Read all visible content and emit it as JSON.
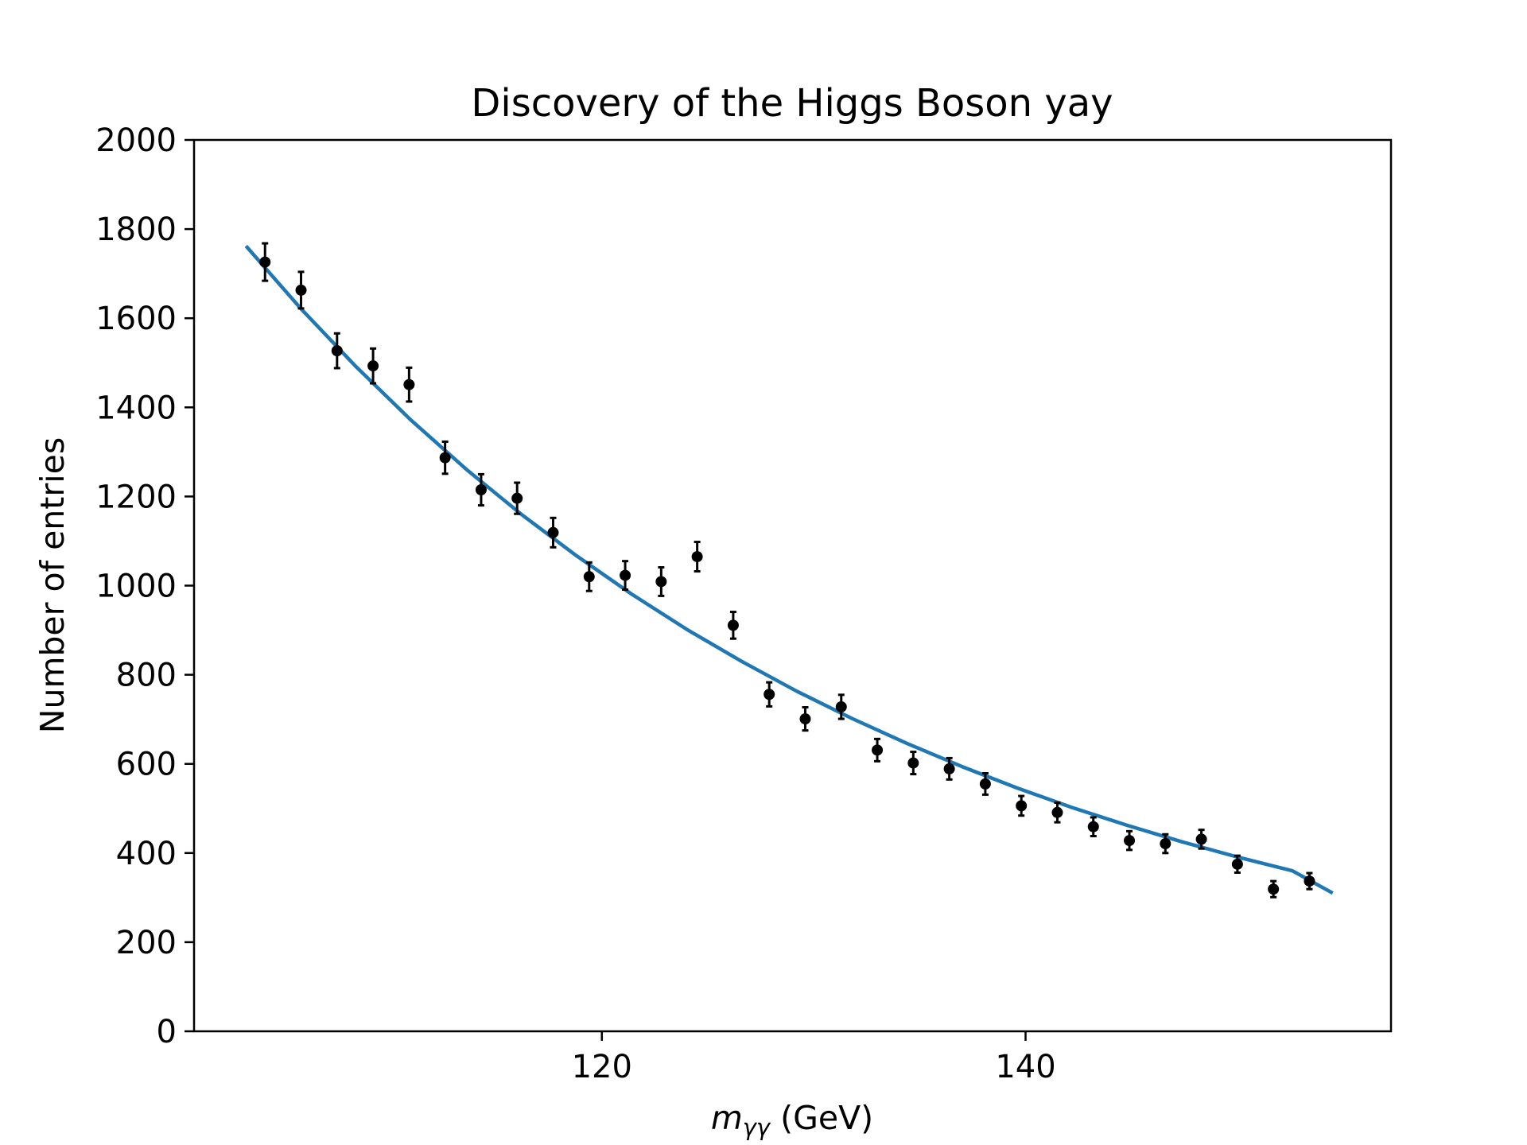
{
  "chart_data": {
    "type": "scatter",
    "title": "Discovery of the Higgs Boson yay",
    "xlabel": {
      "symbol": "m",
      "subscript": "γγ",
      "unit": " (GeV)"
    },
    "ylabel": "Number of entries",
    "xlim": [
      100.75,
      157.25
    ],
    "ylim": [
      0,
      2000
    ],
    "xticks": [
      120,
      140
    ],
    "yticks": [
      0,
      200,
      400,
      600,
      800,
      1000,
      1200,
      1400,
      1600,
      1800,
      2000
    ],
    "grid": false,
    "legend": "none",
    "series": [
      {
        "type": "errorbar",
        "color": "#000000",
        "x": [
          104.1,
          105.8,
          107.5,
          109.2,
          110.9,
          112.6,
          114.3,
          116.0,
          117.7,
          119.4,
          121.1,
          122.8,
          124.5,
          126.2,
          127.9,
          129.6,
          131.3,
          133.0,
          134.7,
          136.4,
          138.1,
          139.8,
          141.5,
          143.2,
          144.9,
          146.6,
          148.3,
          150.0,
          151.7,
          153.4
        ],
        "y": [
          1726,
          1663,
          1527,
          1493,
          1451,
          1287,
          1215,
          1196,
          1119,
          1020,
          1023,
          1009,
          1065,
          911,
          756,
          701,
          728,
          631,
          602,
          589,
          555,
          506,
          491,
          459,
          428,
          421,
          431,
          375,
          319,
          337
        ],
        "yerr": [
          42,
          41,
          39,
          39,
          38,
          36,
          35,
          35,
          33,
          32,
          32,
          32,
          33,
          30,
          27,
          26,
          27,
          25,
          25,
          24,
          24,
          22,
          22,
          21,
          21,
          21,
          21,
          19,
          18,
          18
        ]
      },
      {
        "type": "line",
        "color": "#1f77b4",
        "x": [
          103.2,
          105.8,
          108.4,
          111.0,
          113.6,
          116.2,
          118.8,
          121.4,
          124.0,
          126.6,
          129.2,
          131.8,
          134.4,
          137.0,
          139.6,
          142.2,
          144.8,
          147.4,
          150.0,
          152.6,
          154.5
        ],
        "y": [
          1762,
          1621,
          1491,
          1371,
          1261,
          1160,
          1067,
          981,
          902,
          830,
          763,
          702,
          646,
          594,
          546,
          502,
          462,
          425,
          391,
          360,
          310
        ]
      }
    ]
  }
}
